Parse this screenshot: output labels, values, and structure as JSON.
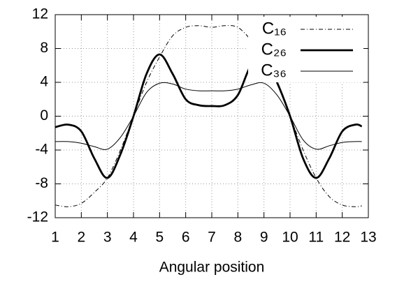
{
  "chart_data": {
    "type": "line",
    "x_label": "Angular position",
    "x": [
      1,
      1.5,
      2,
      2.5,
      3,
      3.5,
      4,
      4.5,
      5,
      5.5,
      6,
      6.5,
      7,
      7.5,
      8,
      8.5,
      9,
      9.5,
      10,
      10.5,
      11,
      11.5,
      12,
      12.5,
      12.75
    ],
    "series": [
      {
        "name": "C₁₆",
        "color": "#000000",
        "style": "dashdot",
        "values": [
          -10.5,
          -10.7,
          -10.3,
          -9,
          -7.3,
          -4,
          0,
          4,
          7,
          9.5,
          10.5,
          10.7,
          10.5,
          10.7,
          10.5,
          9,
          7,
          4,
          0,
          -4,
          -7.3,
          -9.5,
          -10.5,
          -10.7,
          -10.6
        ]
      },
      {
        "name": "C₂₆",
        "color": "#000000",
        "style": "thick",
        "values": [
          -1.3,
          -1,
          -1.8,
          -5,
          -7.3,
          -4.5,
          0,
          5,
          7.3,
          5,
          2,
          1.3,
          1.2,
          1.3,
          2.5,
          6,
          7,
          4,
          0,
          -5,
          -7.3,
          -5,
          -1.8,
          -1,
          -1.2
        ]
      },
      {
        "name": "C₃₆",
        "color": "#000000",
        "style": "thin",
        "values": [
          -3,
          -3,
          -3.2,
          -3.6,
          -3.9,
          -2.5,
          0,
          2.8,
          3.9,
          3.8,
          3.2,
          3,
          3,
          3,
          3.2,
          3.7,
          3.9,
          2.5,
          0,
          -2.8,
          -3.9,
          -3.5,
          -3.1,
          -3,
          -3
        ]
      }
    ],
    "xlim": [
      1,
      13
    ],
    "xticks": [
      1,
      2,
      3,
      4,
      5,
      6,
      7,
      8,
      9,
      10,
      11,
      12,
      13
    ],
    "ylim": [
      -12,
      12
    ],
    "yticks": [
      -12,
      -8,
      -4,
      0,
      4,
      8,
      12
    ],
    "grid": true,
    "legend": "top-right"
  }
}
